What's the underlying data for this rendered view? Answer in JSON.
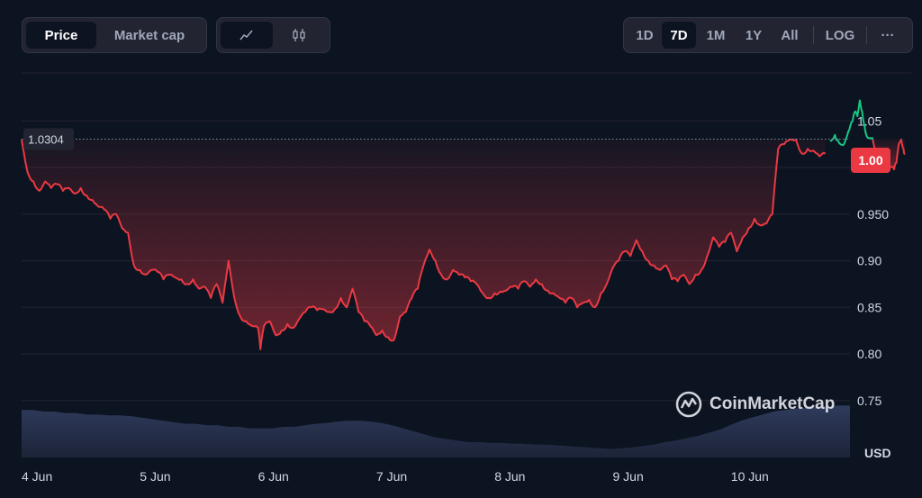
{
  "toolbar": {
    "left_tabs": [
      {
        "label": "Price",
        "active": true
      },
      {
        "label": "Market cap",
        "active": false
      }
    ],
    "chart_type_icons": [
      "line-chart-icon",
      "candlestick-icon"
    ],
    "ranges": [
      {
        "label": "1D",
        "active": false
      },
      {
        "label": "7D",
        "active": true
      },
      {
        "label": "1M",
        "active": false
      },
      {
        "label": "1Y",
        "active": false
      },
      {
        "label": "All",
        "active": false
      }
    ],
    "log_label": "LOG",
    "more_label": "···"
  },
  "watermark": {
    "text": "CoinMarketCap",
    "icon": "coinmarketcap-logo"
  },
  "colors": {
    "background": "#0d1421",
    "down": "#ea3943",
    "up": "#16c784",
    "volume": "#2b3654",
    "grid": "#222531"
  },
  "chart_data": {
    "type": "line",
    "open_price_label": "1.0304",
    "current_price_label": "1.00",
    "currency_label": "USD",
    "ylim": [
      0.72,
      1.1
    ],
    "yticks": [
      "1.05",
      "1.00",
      "0.950",
      "0.90",
      "0.85",
      "0.80",
      "0.75"
    ],
    "ytick_values": [
      1.05,
      1.0,
      0.95,
      0.9,
      0.85,
      0.8,
      0.75
    ],
    "xticks": [
      "4 Jun",
      "5 Jun",
      "6 Jun",
      "7 Jun",
      "8 Jun",
      "9 Jun",
      "10 Jun"
    ],
    "open_value": 1.0304,
    "series": [
      {
        "values": [
          [
            0,
            1.03
          ],
          [
            0.05,
            0.995
          ],
          [
            0.1,
            0.985
          ],
          [
            0.15,
            0.975
          ],
          [
            0.2,
            0.985
          ],
          [
            0.25,
            0.978
          ],
          [
            0.3,
            0.982
          ],
          [
            0.35,
            0.975
          ],
          [
            0.4,
            0.978
          ],
          [
            0.45,
            0.972
          ],
          [
            0.5,
            0.978
          ],
          [
            0.55,
            0.97
          ],
          [
            0.6,
            0.965
          ],
          [
            0.65,
            0.958
          ],
          [
            0.7,
            0.955
          ],
          [
            0.75,
            0.945
          ],
          [
            0.8,
            0.95
          ],
          [
            0.85,
            0.935
          ],
          [
            0.9,
            0.93
          ],
          [
            0.95,
            0.895
          ],
          [
            1.0,
            0.89
          ],
          [
            1.05,
            0.885
          ],
          [
            1.1,
            0.89
          ],
          [
            1.15,
            0.888
          ],
          [
            1.2,
            0.88
          ],
          [
            1.25,
            0.885
          ],
          [
            1.3,
            0.882
          ],
          [
            1.35,
            0.88
          ],
          [
            1.4,
            0.875
          ],
          [
            1.45,
            0.88
          ],
          [
            1.5,
            0.87
          ],
          [
            1.55,
            0.872
          ],
          [
            1.6,
            0.86
          ],
          [
            1.65,
            0.875
          ],
          [
            1.7,
            0.855
          ],
          [
            1.75,
            0.9
          ],
          [
            1.8,
            0.86
          ],
          [
            1.85,
            0.84
          ],
          [
            1.9,
            0.835
          ],
          [
            1.95,
            0.83
          ],
          [
            2.0,
            0.828
          ],
          [
            2.02,
            0.805
          ],
          [
            2.05,
            0.83
          ],
          [
            2.1,
            0.835
          ],
          [
            2.15,
            0.82
          ],
          [
            2.2,
            0.825
          ],
          [
            2.25,
            0.832
          ],
          [
            2.3,
            0.828
          ],
          [
            2.35,
            0.838
          ],
          [
            2.4,
            0.845
          ],
          [
            2.45,
            0.85
          ],
          [
            2.5,
            0.847
          ],
          [
            2.55,
            0.848
          ],
          [
            2.6,
            0.845
          ],
          [
            2.65,
            0.848
          ],
          [
            2.7,
            0.86
          ],
          [
            2.75,
            0.85
          ],
          [
            2.8,
            0.87
          ],
          [
            2.85,
            0.845
          ],
          [
            2.9,
            0.835
          ],
          [
            2.95,
            0.83
          ],
          [
            3.0,
            0.82
          ],
          [
            3.05,
            0.825
          ],
          [
            3.1,
            0.818
          ],
          [
            3.15,
            0.815
          ],
          [
            3.2,
            0.84
          ],
          [
            3.25,
            0.845
          ],
          [
            3.3,
            0.86
          ],
          [
            3.35,
            0.87
          ],
          [
            3.4,
            0.895
          ],
          [
            3.45,
            0.912
          ],
          [
            3.5,
            0.9
          ],
          [
            3.55,
            0.885
          ],
          [
            3.6,
            0.88
          ],
          [
            3.65,
            0.89
          ],
          [
            3.7,
            0.885
          ],
          [
            3.75,
            0.882
          ],
          [
            3.8,
            0.878
          ],
          [
            3.85,
            0.875
          ],
          [
            3.9,
            0.865
          ],
          [
            3.95,
            0.86
          ],
          [
            4.0,
            0.865
          ],
          [
            4.05,
            0.867
          ],
          [
            4.1,
            0.868
          ],
          [
            4.15,
            0.872
          ],
          [
            4.2,
            0.87
          ],
          [
            4.25,
            0.878
          ],
          [
            4.3,
            0.872
          ],
          [
            4.35,
            0.88
          ],
          [
            4.4,
            0.875
          ],
          [
            4.45,
            0.868
          ],
          [
            4.5,
            0.865
          ],
          [
            4.55,
            0.86
          ],
          [
            4.6,
            0.855
          ],
          [
            4.65,
            0.86
          ],
          [
            4.7,
            0.85
          ],
          [
            4.75,
            0.855
          ],
          [
            4.8,
            0.858
          ],
          [
            4.85,
            0.85
          ],
          [
            4.9,
            0.865
          ],
          [
            4.95,
            0.875
          ],
          [
            5.0,
            0.892
          ],
          [
            5.05,
            0.9
          ],
          [
            5.1,
            0.91
          ],
          [
            5.15,
            0.905
          ],
          [
            5.2,
            0.922
          ],
          [
            5.25,
            0.91
          ],
          [
            5.3,
            0.9
          ],
          [
            5.35,
            0.895
          ],
          [
            5.4,
            0.89
          ],
          [
            5.45,
            0.895
          ],
          [
            5.5,
            0.88
          ],
          [
            5.55,
            0.878
          ],
          [
            5.6,
            0.885
          ],
          [
            5.65,
            0.875
          ],
          [
            5.7,
            0.885
          ],
          [
            5.75,
            0.89
          ],
          [
            5.8,
            0.905
          ],
          [
            5.85,
            0.925
          ],
          [
            5.9,
            0.915
          ],
          [
            5.95,
            0.92
          ],
          [
            6.0,
            0.93
          ],
          [
            6.05,
            0.91
          ],
          [
            6.1,
            0.925
          ],
          [
            6.15,
            0.935
          ],
          [
            6.2,
            0.945
          ],
          [
            6.25,
            0.938
          ],
          [
            6.3,
            0.94
          ],
          [
            6.35,
            0.95
          ],
          [
            6.4,
            1.02
          ],
          [
            6.45,
            1.025
          ],
          [
            6.5,
            1.03
          ],
          [
            6.55,
            1.03
          ],
          [
            6.6,
            1.015
          ],
          [
            6.65,
            1.02
          ],
          [
            6.7,
            1.018
          ],
          [
            6.75,
            1.012
          ],
          [
            6.8,
            1.015
          ]
        ]
      },
      {
        "values": [
          [
            6.84,
            1.028
          ],
          [
            6.88,
            1.035
          ],
          [
            6.9,
            1.03
          ],
          [
            6.95,
            1.024
          ],
          [
            6.98,
            1.033
          ],
          [
            7.0,
            1.04
          ],
          [
            7.03,
            1.05
          ],
          [
            7.05,
            1.06
          ],
          [
            7.07,
            1.055
          ],
          [
            7.09,
            1.072
          ],
          [
            7.11,
            1.06
          ],
          [
            7.13,
            1.045
          ],
          [
            7.15,
            1.033
          ],
          [
            7.18,
            1.031
          ],
          [
            7.2,
            1.03
          ]
        ]
      },
      {
        "values": [
          [
            7.2,
            1.03
          ],
          [
            7.22,
            1.02
          ],
          [
            7.25,
            1.005
          ],
          [
            7.28,
            1.0
          ],
          [
            7.31,
            0.995
          ],
          [
            7.35,
            1.0
          ],
          [
            7.38,
            0.998
          ],
          [
            7.4,
            1.005
          ],
          [
            7.42,
            1.025
          ],
          [
            7.44,
            1.03
          ],
          [
            7.46,
            1.02
          ],
          [
            7.47,
            1.015
          ]
        ]
      }
    ],
    "volume": [
      0.62,
      0.62,
      0.6,
      0.6,
      0.58,
      0.58,
      0.56,
      0.56,
      0.55,
      0.55,
      0.54,
      0.52,
      0.5,
      0.48,
      0.46,
      0.44,
      0.44,
      0.42,
      0.42,
      0.4,
      0.4,
      0.38,
      0.38,
      0.38,
      0.4,
      0.4,
      0.42,
      0.44,
      0.45,
      0.47,
      0.48,
      0.48,
      0.47,
      0.45,
      0.42,
      0.38,
      0.34,
      0.3,
      0.26,
      0.24,
      0.22,
      0.2,
      0.2,
      0.19,
      0.19,
      0.18,
      0.18,
      0.17,
      0.17,
      0.16,
      0.15,
      0.14,
      0.13,
      0.12,
      0.11,
      0.12,
      0.13,
      0.15,
      0.17,
      0.2,
      0.22,
      0.25,
      0.28,
      0.32,
      0.36,
      0.42,
      0.48,
      0.52,
      0.56,
      0.6,
      0.62,
      0.64,
      0.65,
      0.66,
      0.67,
      0.68,
      0.68
    ]
  }
}
